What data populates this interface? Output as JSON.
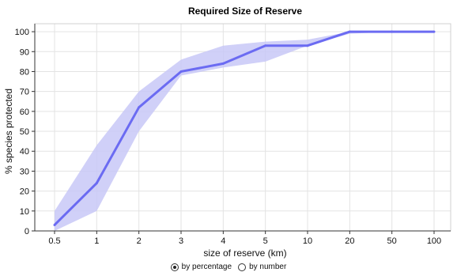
{
  "chart_data": {
    "type": "line",
    "title": "Required Size of Reserve",
    "xlabel": "size of reserve (km)",
    "ylabel": "% species protected",
    "categories": [
      "0.5",
      "1",
      "2",
      "3",
      "4",
      "5",
      "10",
      "20",
      "50",
      "100"
    ],
    "yticks": [
      "0",
      "10",
      "20",
      "30",
      "40",
      "50",
      "60",
      "70",
      "80",
      "90",
      "100"
    ],
    "ylim": [
      0,
      104
    ],
    "grid": true,
    "series": [
      {
        "values": [
          3,
          24,
          62,
          80,
          84,
          93,
          93,
          100,
          100,
          100
        ],
        "lower": [
          0,
          10,
          50,
          78,
          82,
          85,
          93,
          99,
          100,
          100
        ],
        "upper": [
          10,
          43,
          70,
          86,
          93,
          95,
          96,
          100,
          100,
          100
        ]
      }
    ],
    "colors": {
      "line": "#6b6bf2",
      "band": "#c8c8f7"
    }
  },
  "controls": {
    "by_percentage_label": "by percentage",
    "by_number_label": "by number",
    "selected": "by percentage"
  }
}
